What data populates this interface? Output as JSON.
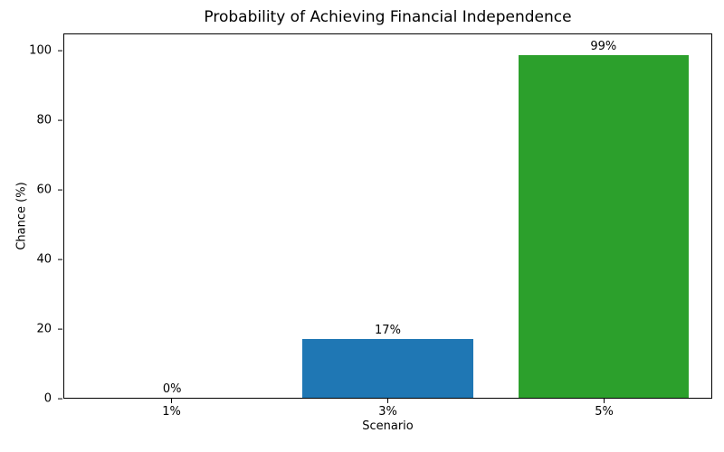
{
  "chart_data": {
    "type": "bar",
    "title": "Probability of Achieving Financial Independence",
    "xlabel": "Scenario",
    "ylabel": "Chance (%)",
    "categories": [
      "1%",
      "3%",
      "5%"
    ],
    "values": [
      0,
      17,
      99
    ],
    "bar_labels": [
      "0%",
      "17%",
      "99%"
    ],
    "bar_colors": [
      null,
      "#1f77b4",
      "#2ca02c"
    ],
    "ylim": [
      0,
      105
    ],
    "yticks": [
      0,
      20,
      40,
      60,
      80,
      100
    ],
    "grid": false,
    "legend": null,
    "background": "#ffffff",
    "spine_color": "#000000",
    "text_color": "#000000"
  }
}
